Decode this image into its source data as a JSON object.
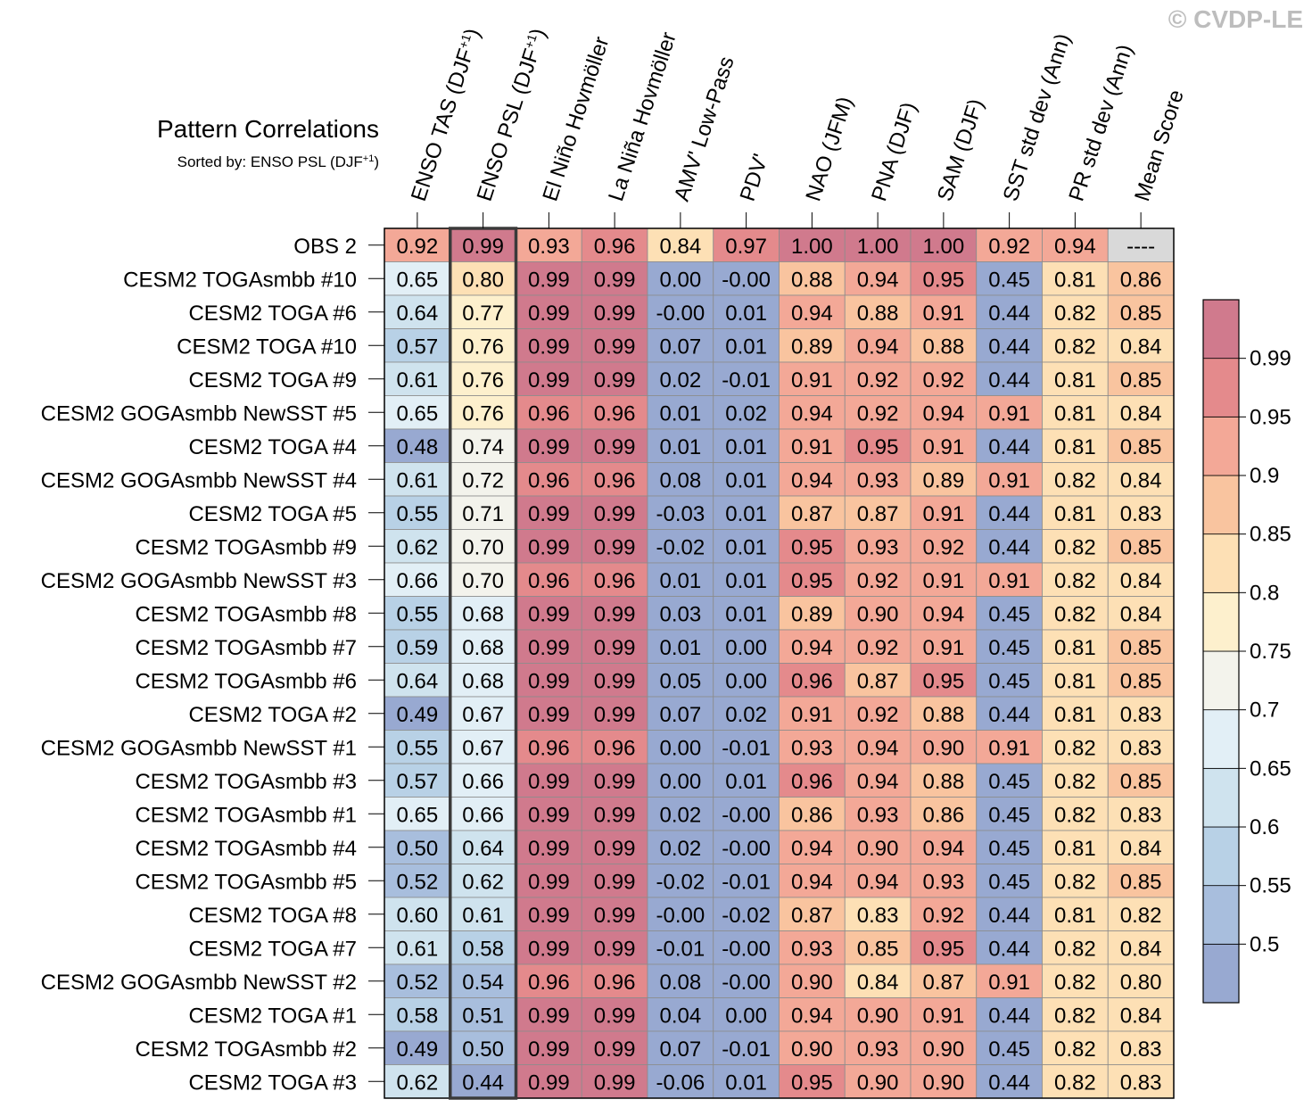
{
  "copyright": "© CVDP-LE",
  "chart_data": {
    "type": "heatmap",
    "title": "Pattern Correlations",
    "subtitle_prefix": "Sorted by: ENSO PSL (DJF",
    "subtitle_sup": "+1",
    "subtitle_suffix": ")",
    "sorted_column_index": 1,
    "columns": [
      {
        "label": "ENSO TAS (DJF",
        "sup": "+1",
        "suffix": ")"
      },
      {
        "label": "ENSO PSL (DJF",
        "sup": "+1",
        "suffix": ")"
      },
      {
        "label": "El Niño Hovmöller"
      },
      {
        "label": "La Niña Hovmöller"
      },
      {
        "label": "AMV' Low-Pass"
      },
      {
        "label": "PDV'"
      },
      {
        "label": "NAO (JFM)"
      },
      {
        "label": "PNA (DJF)"
      },
      {
        "label": "SAM (DJF)"
      },
      {
        "label": "SST std dev (Ann)"
      },
      {
        "label": "PR std dev (Ann)"
      },
      {
        "label": "Mean Score"
      }
    ],
    "rows": [
      {
        "name": "OBS 2",
        "values": [
          "0.92",
          "0.99",
          "0.93",
          "0.96",
          "0.84",
          "0.97",
          "1.00",
          "1.00",
          "1.00",
          "0.92",
          "0.94",
          "----"
        ]
      },
      {
        "name": "CESM2 TOGAsmbb #10",
        "values": [
          "0.65",
          "0.80",
          "0.99",
          "0.99",
          "0.00",
          "-0.00",
          "0.88",
          "0.94",
          "0.95",
          "0.45",
          "0.81",
          "0.86"
        ]
      },
      {
        "name": "CESM2 TOGA #6",
        "values": [
          "0.64",
          "0.77",
          "0.99",
          "0.99",
          "-0.00",
          "0.01",
          "0.94",
          "0.88",
          "0.91",
          "0.44",
          "0.82",
          "0.85"
        ]
      },
      {
        "name": "CESM2 TOGA #10",
        "values": [
          "0.57",
          "0.76",
          "0.99",
          "0.99",
          "0.07",
          "0.01",
          "0.89",
          "0.94",
          "0.88",
          "0.44",
          "0.82",
          "0.84"
        ]
      },
      {
        "name": "CESM2 TOGA #9",
        "values": [
          "0.61",
          "0.76",
          "0.99",
          "0.99",
          "0.02",
          "-0.01",
          "0.91",
          "0.92",
          "0.92",
          "0.44",
          "0.81",
          "0.85"
        ]
      },
      {
        "name": "CESM2 GOGAsmbb NewSST #5",
        "values": [
          "0.65",
          "0.76",
          "0.96",
          "0.96",
          "0.01",
          "0.02",
          "0.94",
          "0.92",
          "0.94",
          "0.91",
          "0.81",
          "0.84"
        ]
      },
      {
        "name": "CESM2 TOGA #4",
        "values": [
          "0.48",
          "0.74",
          "0.99",
          "0.99",
          "0.01",
          "0.01",
          "0.91",
          "0.95",
          "0.91",
          "0.44",
          "0.81",
          "0.85"
        ]
      },
      {
        "name": "CESM2 GOGAsmbb NewSST #4",
        "values": [
          "0.61",
          "0.72",
          "0.96",
          "0.96",
          "0.08",
          "0.01",
          "0.94",
          "0.93",
          "0.89",
          "0.91",
          "0.82",
          "0.84"
        ]
      },
      {
        "name": "CESM2 TOGA #5",
        "values": [
          "0.55",
          "0.71",
          "0.99",
          "0.99",
          "-0.03",
          "0.01",
          "0.87",
          "0.87",
          "0.91",
          "0.44",
          "0.81",
          "0.83"
        ]
      },
      {
        "name": "CESM2 TOGAsmbb #9",
        "values": [
          "0.62",
          "0.70",
          "0.99",
          "0.99",
          "-0.02",
          "0.01",
          "0.95",
          "0.93",
          "0.92",
          "0.44",
          "0.82",
          "0.85"
        ]
      },
      {
        "name": "CESM2 GOGAsmbb NewSST #3",
        "values": [
          "0.66",
          "0.70",
          "0.96",
          "0.96",
          "0.01",
          "0.01",
          "0.95",
          "0.92",
          "0.91",
          "0.91",
          "0.82",
          "0.84"
        ]
      },
      {
        "name": "CESM2 TOGAsmbb #8",
        "values": [
          "0.55",
          "0.68",
          "0.99",
          "0.99",
          "0.03",
          "0.01",
          "0.89",
          "0.90",
          "0.94",
          "0.45",
          "0.82",
          "0.84"
        ]
      },
      {
        "name": "CESM2 TOGAsmbb #7",
        "values": [
          "0.59",
          "0.68",
          "0.99",
          "0.99",
          "0.01",
          "0.00",
          "0.94",
          "0.92",
          "0.91",
          "0.45",
          "0.81",
          "0.85"
        ]
      },
      {
        "name": "CESM2 TOGAsmbb #6",
        "values": [
          "0.64",
          "0.68",
          "0.99",
          "0.99",
          "0.05",
          "0.00",
          "0.96",
          "0.87",
          "0.95",
          "0.45",
          "0.81",
          "0.85"
        ]
      },
      {
        "name": "CESM2 TOGA #2",
        "values": [
          "0.49",
          "0.67",
          "0.99",
          "0.99",
          "0.07",
          "0.02",
          "0.91",
          "0.92",
          "0.88",
          "0.44",
          "0.81",
          "0.83"
        ]
      },
      {
        "name": "CESM2 GOGAsmbb NewSST #1",
        "values": [
          "0.55",
          "0.67",
          "0.96",
          "0.96",
          "0.00",
          "-0.01",
          "0.93",
          "0.94",
          "0.90",
          "0.91",
          "0.82",
          "0.83"
        ]
      },
      {
        "name": "CESM2 TOGAsmbb #3",
        "values": [
          "0.57",
          "0.66",
          "0.99",
          "0.99",
          "0.00",
          "0.01",
          "0.96",
          "0.94",
          "0.88",
          "0.45",
          "0.82",
          "0.85"
        ]
      },
      {
        "name": "CESM2 TOGAsmbb #1",
        "values": [
          "0.65",
          "0.66",
          "0.99",
          "0.99",
          "0.02",
          "-0.00",
          "0.86",
          "0.93",
          "0.86",
          "0.45",
          "0.82",
          "0.83"
        ]
      },
      {
        "name": "CESM2 TOGAsmbb #4",
        "values": [
          "0.50",
          "0.64",
          "0.99",
          "0.99",
          "0.02",
          "-0.00",
          "0.94",
          "0.90",
          "0.94",
          "0.45",
          "0.81",
          "0.84"
        ]
      },
      {
        "name": "CESM2 TOGAsmbb #5",
        "values": [
          "0.52",
          "0.62",
          "0.99",
          "0.99",
          "-0.02",
          "-0.01",
          "0.94",
          "0.94",
          "0.93",
          "0.45",
          "0.82",
          "0.85"
        ]
      },
      {
        "name": "CESM2 TOGA #8",
        "values": [
          "0.60",
          "0.61",
          "0.99",
          "0.99",
          "-0.00",
          "-0.02",
          "0.87",
          "0.83",
          "0.92",
          "0.44",
          "0.81",
          "0.82"
        ]
      },
      {
        "name": "CESM2 TOGA #7",
        "values": [
          "0.61",
          "0.58",
          "0.99",
          "0.99",
          "-0.01",
          "-0.00",
          "0.93",
          "0.85",
          "0.95",
          "0.44",
          "0.82",
          "0.84"
        ]
      },
      {
        "name": "CESM2 GOGAsmbb NewSST #2",
        "values": [
          "0.52",
          "0.54",
          "0.96",
          "0.96",
          "0.08",
          "-0.00",
          "0.90",
          "0.84",
          "0.87",
          "0.91",
          "0.82",
          "0.80"
        ]
      },
      {
        "name": "CESM2 TOGA #1",
        "values": [
          "0.58",
          "0.51",
          "0.99",
          "0.99",
          "0.04",
          "0.00",
          "0.94",
          "0.90",
          "0.91",
          "0.44",
          "0.82",
          "0.84"
        ]
      },
      {
        "name": "CESM2 TOGAsmbb #2",
        "values": [
          "0.49",
          "0.50",
          "0.99",
          "0.99",
          "0.07",
          "-0.01",
          "0.90",
          "0.93",
          "0.90",
          "0.45",
          "0.82",
          "0.83"
        ]
      },
      {
        "name": "CESM2 TOGA #3",
        "values": [
          "0.62",
          "0.44",
          "0.99",
          "0.99",
          "-0.06",
          "0.01",
          "0.95",
          "0.90",
          "0.90",
          "0.44",
          "0.82",
          "0.83"
        ]
      }
    ],
    "colorbar": {
      "bounds": [
        0.5,
        0.55,
        0.6,
        0.65,
        0.7,
        0.75,
        0.8,
        0.85,
        0.9,
        0.95,
        0.99
      ],
      "tick_labels": [
        "0.5",
        "0.55",
        "0.6",
        "0.65",
        "0.7",
        "0.75",
        "0.8",
        "0.85",
        "0.9",
        "0.95",
        "0.99"
      ],
      "colors": [
        "#98a9d1",
        "#a8bedd",
        "#b8d1e6",
        "#cfe3ee",
        "#e2eff6",
        "#f3f3ec",
        "#fdf0cd",
        "#fde0b5",
        "#f9c49f",
        "#f3a897",
        "#e48a8c",
        "#d07a8d"
      ],
      "missing_color": "#d9d9d9"
    }
  }
}
